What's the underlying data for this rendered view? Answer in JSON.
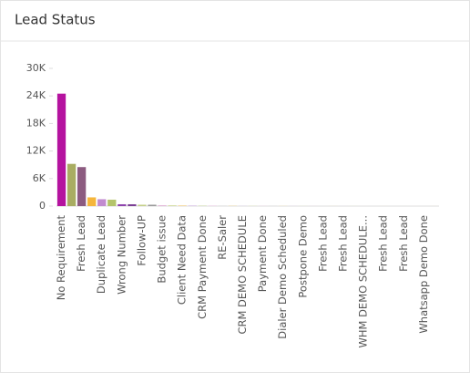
{
  "chart_data": {
    "type": "bar",
    "title": "Lead Status",
    "categories": [
      "No Requirement",
      null,
      "Fresh Lead",
      null,
      "Duplicate Lead",
      null,
      "Wrong Number",
      null,
      "Follow-UP",
      null,
      "Budget issue",
      null,
      "Client Need Data",
      null,
      "CRM Payment Done",
      null,
      "RE-Saler",
      null,
      "CRM DEMO SCHEDULE",
      null,
      "Payment Done",
      null,
      "Dialer Demo Scheduled",
      null,
      "Postpone Demo",
      null,
      "Fresh Lead",
      null,
      "Fresh Lead",
      null,
      "WHM DEMO SCHEDULE...",
      null,
      "Fresh Lead",
      null,
      "Fresh Lead",
      null,
      "Whatsapp Demo Done",
      null
    ],
    "values": [
      24500,
      9200,
      8500,
      1900,
      1500,
      1400,
      400,
      400,
      300,
      300,
      200,
      200,
      150,
      150,
      100,
      100,
      80,
      80,
      60,
      60,
      50,
      50,
      40,
      40,
      30,
      30,
      20,
      20,
      20,
      20,
      10,
      10,
      10,
      10,
      10,
      10,
      10,
      10
    ],
    "colors": [
      "#b5139f",
      "#a9ad62",
      "#8c5b80",
      "#f5b63c",
      "#c18bcf",
      "#b4c46a",
      "#8e44ad",
      "#7b3f94",
      "#c4cf88",
      "#9a9a9a",
      "#e3b8d9",
      "#d6dfa8",
      "#f3d08d",
      "#d9c2e6",
      "#c9d6a2",
      "#e6c1dc",
      "#d0d0d0",
      "#e8d49c",
      "#d5c7e0",
      "#d9e2b5",
      "#e9c9de",
      "#d8d8d8",
      "#f0dca8",
      "#ddd0e6",
      "#dde6bd",
      "#ecd0e2",
      "#dcdcdc",
      "#f2e0b0",
      "#e0d5ea",
      "#e1e9c4",
      "#eed5e5",
      "#e0e0e0",
      "#f3e3b8",
      "#e3d9ec",
      "#e4ecca",
      "#f0d9e7",
      "#e3e3e3",
      "#f4e6bf"
    ],
    "ylim": [
      0,
      30000
    ],
    "yticks": [
      0,
      {
        "value": 6000,
        "label": "6K"
      },
      {
        "value": 12000,
        "label": "12K"
      },
      {
        "value": 18000,
        "label": "18K"
      },
      {
        "value": 24000,
        "label": "24K"
      },
      {
        "value": 30000,
        "label": "30K"
      }
    ],
    "grid": false
  }
}
